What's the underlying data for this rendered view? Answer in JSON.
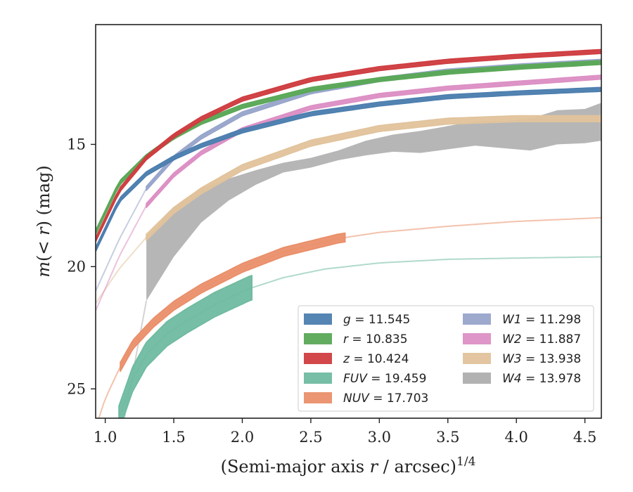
{
  "chart_data": {
    "type": "line",
    "xlabel_main": "(Semi-major axis ",
    "xlabel_var": "r",
    "xlabel_rest": " / arcsec)",
    "xlabel_sup": "1/4",
    "ylabel_main": "m(",
    "ylabel_ineq": "< r",
    "ylabel_rest": ") (mag)",
    "xlim": [
      0.93,
      4.62
    ],
    "ylim": [
      26.2,
      10.1
    ],
    "y_inverted": true,
    "xticks": [
      "1.0",
      "1.5",
      "2.0",
      "2.5",
      "3.0",
      "3.5",
      "4.0",
      "4.5"
    ],
    "xtick_values": [
      1.0,
      1.5,
      2.0,
      2.5,
      3.0,
      3.5,
      4.0,
      4.5
    ],
    "yticks": [
      "15",
      "20",
      "25"
    ],
    "ytick_values": [
      15,
      20,
      25
    ],
    "legend_placement": "lower-right",
    "grid": false,
    "series": [
      {
        "key": "g",
        "label_var": "g",
        "label_value": " = 11.545",
        "color": "#4c7eaf",
        "x": [
          0.93,
          1.1,
          1.3,
          1.5,
          1.7,
          2.0,
          2.5,
          3.0,
          3.5,
          4.0,
          4.62
        ],
        "y": [
          19.3,
          17.3,
          16.2,
          15.55,
          15.05,
          14.45,
          13.75,
          13.35,
          13.05,
          12.9,
          12.75
        ],
        "meas_start": 0.93,
        "meas_end": 4.62,
        "band": 0.08
      },
      {
        "key": "r",
        "label_var": "r",
        "label_value": " = 10.835",
        "color": "#5aa857",
        "x": [
          0.93,
          1.1,
          1.3,
          1.5,
          1.7,
          2.0,
          2.5,
          3.0,
          3.5,
          4.0,
          4.62
        ],
        "y": [
          18.6,
          16.6,
          15.5,
          14.7,
          14.1,
          13.45,
          12.75,
          12.35,
          12.05,
          11.85,
          11.65
        ],
        "meas_start": 0.93,
        "meas_end": 4.62,
        "band": 0.08
      },
      {
        "key": "z",
        "label_var": "z",
        "label_value": " = 10.424",
        "color": "#cf3d40",
        "x": [
          0.93,
          1.1,
          1.3,
          1.5,
          1.7,
          2.0,
          2.5,
          3.0,
          3.5,
          4.0,
          4.62
        ],
        "y": [
          18.9,
          16.9,
          15.55,
          14.65,
          13.95,
          13.15,
          12.35,
          11.9,
          11.6,
          11.4,
          11.2
        ],
        "meas_start": 0.93,
        "meas_end": 4.62,
        "band": 0.08
      },
      {
        "key": "FUV",
        "label_var": "FUV",
        "label_value": " = 19.459",
        "color": "#6fbba0",
        "x": [
          1.1,
          1.2,
          1.3,
          1.45,
          1.6,
          1.8,
          2.05,
          2.3,
          2.6,
          3.0,
          3.5,
          4.0,
          4.62
        ],
        "y": [
          26.2,
          24.6,
          23.6,
          22.75,
          22.2,
          21.55,
          20.9,
          20.45,
          20.1,
          19.85,
          19.7,
          19.65,
          19.6
        ],
        "meas_start": 1.1,
        "meas_end": 2.07,
        "band": 0.5
      },
      {
        "key": "NUV",
        "label_var": "NUV",
        "label_value": " = 17.703",
        "color": "#ea8f6a",
        "x": [
          0.93,
          1.0,
          1.1,
          1.2,
          1.35,
          1.5,
          1.7,
          2.0,
          2.3,
          2.7,
          3.0,
          3.5,
          4.0,
          4.62
        ],
        "y": [
          26.6,
          25.4,
          24.2,
          23.2,
          22.3,
          21.6,
          20.9,
          20.05,
          19.4,
          18.85,
          18.6,
          18.35,
          18.15,
          18.0
        ],
        "meas_start": 1.11,
        "meas_end": 2.75,
        "band": 0.18
      },
      {
        "key": "W1",
        "label_var": "W1",
        "label_value": " = 11.298",
        "color": "#98a5cb",
        "x": [
          0.93,
          1.1,
          1.3,
          1.5,
          1.7,
          2.0,
          2.5,
          3.0,
          3.5,
          4.0,
          4.62
        ],
        "y": [
          21.0,
          18.9,
          16.8,
          15.55,
          14.7,
          13.75,
          12.85,
          12.35,
          12.0,
          11.8,
          11.6
        ],
        "meas_start": 1.3,
        "meas_end": 4.62,
        "band": 0.08
      },
      {
        "key": "W2",
        "label_var": "W2",
        "label_value": " = 11.887",
        "color": "#dc8fc4",
        "x": [
          0.93,
          1.1,
          1.3,
          1.5,
          1.7,
          2.0,
          2.5,
          3.0,
          3.5,
          4.0,
          4.62
        ],
        "y": [
          21.8,
          19.6,
          17.5,
          16.25,
          15.35,
          14.4,
          13.5,
          13.0,
          12.7,
          12.5,
          12.25
        ],
        "meas_start": 1.3,
        "meas_end": 4.62,
        "band": 0.08
      },
      {
        "key": "W3",
        "label_var": "W3",
        "label_value": " = 13.938",
        "color": "#e1c39c",
        "x": [
          0.93,
          1.1,
          1.3,
          1.5,
          1.7,
          2.0,
          2.5,
          3.0,
          3.5,
          4.0,
          4.62
        ],
        "y": [
          21.5,
          20.1,
          18.8,
          17.7,
          16.9,
          15.95,
          14.95,
          14.35,
          14.05,
          13.95,
          13.95
        ],
        "meas_start": 1.3,
        "meas_end": 4.62,
        "band": 0.12
      },
      {
        "key": "W4",
        "label_var": "W4",
        "label_value": " = 13.978",
        "color": "#aeaeae",
        "x": [
          1.3,
          1.5,
          1.7,
          1.9,
          2.1,
          2.3,
          2.5,
          2.7,
          2.9,
          3.1,
          3.3,
          3.5,
          3.7,
          3.9,
          4.1,
          4.3,
          4.5,
          4.62
        ],
        "y": [
          20.1,
          18.6,
          17.5,
          16.85,
          16.35,
          15.95,
          15.75,
          15.45,
          15.15,
          14.95,
          14.9,
          14.75,
          14.65,
          14.6,
          14.55,
          14.4,
          14.3,
          14.25
        ],
        "band_lo": [
          18.8,
          17.6,
          16.8,
          16.4,
          16.05,
          15.75,
          15.55,
          15.25,
          14.85,
          14.6,
          14.45,
          14.25,
          14.05,
          14.05,
          13.95,
          13.6,
          13.55,
          13.3
        ],
        "band_hi": [
          21.4,
          19.6,
          18.2,
          17.3,
          16.65,
          16.15,
          15.95,
          15.65,
          15.45,
          15.3,
          15.35,
          15.2,
          15.05,
          15.15,
          15.25,
          15.0,
          14.95,
          14.85
        ],
        "tail_x": [
          1.14,
          1.3
        ],
        "tail_y": [
          26.2,
          21.4
        ],
        "meas_start": 1.3,
        "meas_end": 4.62
      }
    ]
  }
}
